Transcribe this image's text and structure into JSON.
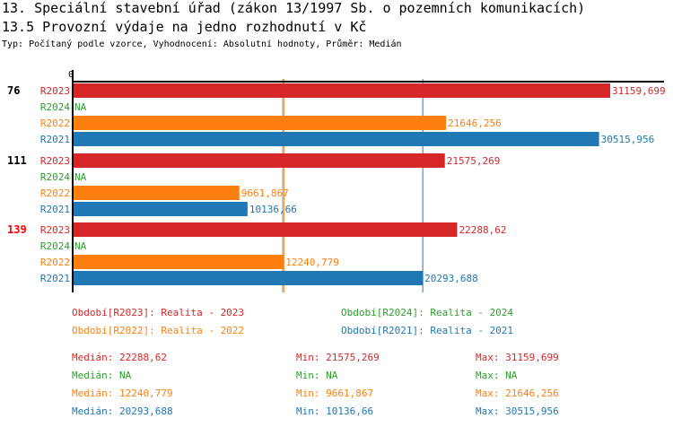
{
  "title": "13. Speciální stavební úřad (zákon 13/1997 Sb. o pozemních komunikacích)",
  "subtitle": "13.5 Provozní výdaje na jedno rozhodnutí v Kč",
  "info": "Typ: Počítaný podle vzorce, Vyhodnocení: Absolutní hodnoty, Průměr: Medián",
  "colors": {
    "R2023": "#d62728",
    "R2024": "#2ca02c",
    "R2022": "#ff7f0e",
    "R2021": "#1f77b4",
    "highlight": "#ff0000"
  },
  "chart_data": {
    "type": "bar",
    "orientation": "horizontal",
    "xlim": [
      0,
      31159.699
    ],
    "x_tick_labels": [
      "0"
    ],
    "series_order": [
      "R2023",
      "R2024",
      "R2022",
      "R2021"
    ],
    "groups": [
      {
        "label": "76",
        "highlight": false,
        "values": [
          {
            "s": "R2023",
            "v": 31159.699,
            "t": "31159,699"
          },
          {
            "s": "R2024",
            "v": null,
            "t": "NA"
          },
          {
            "s": "R2022",
            "v": 21646.256,
            "t": "21646,256"
          },
          {
            "s": "R2021",
            "v": 30515.956,
            "t": "30515,956"
          }
        ]
      },
      {
        "label": "111",
        "highlight": false,
        "values": [
          {
            "s": "R2023",
            "v": 21575.269,
            "t": "21575,269"
          },
          {
            "s": "R2024",
            "v": null,
            "t": "NA"
          },
          {
            "s": "R2022",
            "v": 9661.867,
            "t": "9661,867"
          },
          {
            "s": "R2021",
            "v": 10136.66,
            "t": "10136,66"
          }
        ]
      },
      {
        "label": "139",
        "highlight": true,
        "values": [
          {
            "s": "R2023",
            "v": 22288.62,
            "t": "22288,62"
          },
          {
            "s": "R2024",
            "v": null,
            "t": "NA"
          },
          {
            "s": "R2022",
            "v": 12240.779,
            "t": "12240,779"
          },
          {
            "s": "R2021",
            "v": 20293.688,
            "t": "20293,688"
          }
        ]
      }
    ],
    "median_lines": [
      {
        "s": "R2022",
        "v": 12240.779
      },
      {
        "s": "R2021",
        "v": 20293.688
      }
    ]
  },
  "legend": [
    {
      "s": "R2023",
      "text": "Období[R2023]: Realita - 2023"
    },
    {
      "s": "R2024",
      "text": "Období[R2024]: Realita - 2024"
    },
    {
      "s": "R2022",
      "text": "Období[R2022]: Realita - 2022"
    },
    {
      "s": "R2021",
      "text": "Období[R2021]: Realita - 2021"
    }
  ],
  "stats": [
    {
      "s": "R2023",
      "median": "Medián: 22288,62",
      "min": "Min: 21575,269",
      "max": "Max: 31159,699"
    },
    {
      "s": "R2024",
      "median": "Medián: NA",
      "min": "Min: NA",
      "max": "Max: NA"
    },
    {
      "s": "R2022",
      "median": "Medián: 12240,779",
      "min": "Min: 9661,867",
      "max": "Max: 21646,256"
    },
    {
      "s": "R2021",
      "median": "Medián: 20293,688",
      "min": "Min: 10136,66",
      "max": "Max: 30515,956"
    }
  ]
}
